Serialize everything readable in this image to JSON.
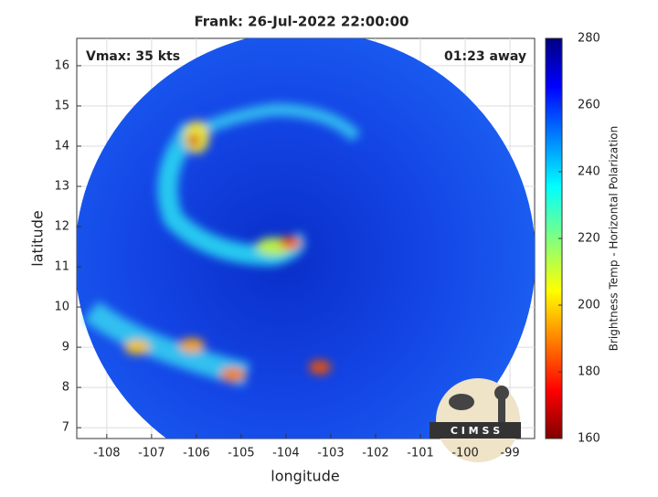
{
  "chart_data": {
    "type": "heatmap",
    "title": "Frank: 26-Jul-2022 22:00:00",
    "annotations": [
      "Vmax: 35 kts",
      "01:23 away"
    ],
    "x_label": "longitude",
    "y_label": "latitude",
    "xlim": [
      -108.67,
      -98.45
    ],
    "xticks": [
      -108,
      -107,
      -106,
      -105,
      -104,
      -103,
      -102,
      -101,
      -100,
      -99
    ],
    "ylim": [
      6.73,
      16.68
    ],
    "yticks": [
      7,
      8,
      9,
      10,
      11,
      12,
      13,
      14,
      15,
      16
    ],
    "grid": true,
    "colorbar": {
      "label": "Brightness Temp - Horizontal Polarization",
      "lim": [
        160,
        280
      ],
      "ticks": [
        160,
        180,
        200,
        220,
        240,
        260,
        280
      ],
      "colormap": "jet"
    },
    "logo_text": "C I M S S"
  }
}
